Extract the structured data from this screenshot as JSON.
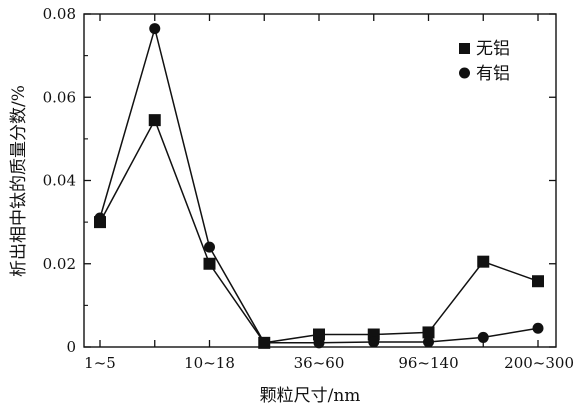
{
  "chart_data": {
    "type": "line",
    "xlabel": "颗粒尺寸/nm",
    "ylabel": "析出相中钛的质量分数/%",
    "x_tick_labels": [
      "1~5",
      "",
      "10~18",
      "",
      "36~60",
      "",
      "96~140",
      "",
      "200~300"
    ],
    "y_tick_labels": [
      "0",
      "0.02",
      "0.04",
      "0.06",
      "0.08"
    ],
    "ylim": [
      0,
      0.08
    ],
    "grid": false,
    "legend_position": "top-right",
    "series": [
      {
        "name": "无铝",
        "marker": "square",
        "values": [
          0.03,
          0.0545,
          0.02,
          0.001,
          0.003,
          0.003,
          0.0035,
          0.0205,
          0.0158
        ]
      },
      {
        "name": "有铝",
        "marker": "circle",
        "values": [
          0.031,
          0.0765,
          0.024,
          0.001,
          0.001,
          0.0012,
          0.0012,
          0.0023,
          0.0045
        ]
      }
    ],
    "colors": {
      "line": "#111111",
      "marker": "#111111",
      "axis": "#111111",
      "background": "#ffffff"
    }
  }
}
